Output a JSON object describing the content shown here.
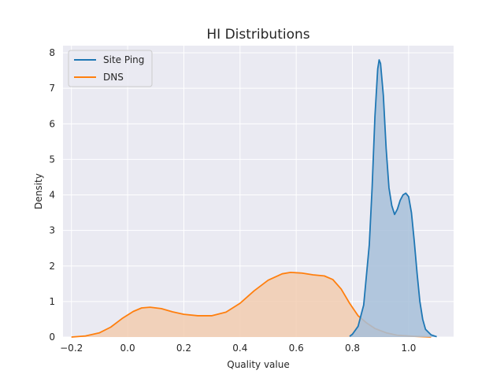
{
  "chart_data": {
    "type": "area",
    "title": "HI Distributions",
    "xlabel": "Quality value",
    "ylabel": "Density",
    "xlim": [
      -0.23,
      1.16
    ],
    "ylim": [
      0,
      8.2
    ],
    "xticks": [
      "−0.2",
      "0.0",
      "0.2",
      "0.4",
      "0.6",
      "0.8",
      "1.0"
    ],
    "xtick_values": [
      -0.2,
      0.0,
      0.2,
      0.4,
      0.6,
      0.8,
      1.0
    ],
    "yticks": [
      "0",
      "1",
      "2",
      "3",
      "4",
      "5",
      "6",
      "7",
      "8"
    ],
    "ytick_values": [
      0,
      1,
      2,
      3,
      4,
      5,
      6,
      7,
      8
    ],
    "grid": true,
    "legend_position": "top-left",
    "series": [
      {
        "name": "Site Ping",
        "color": "#1f77b4",
        "fill": "#a7bfd9",
        "points": [
          [
            0.79,
            0.02
          ],
          [
            0.8,
            0.08
          ],
          [
            0.82,
            0.3
          ],
          [
            0.84,
            0.9
          ],
          [
            0.86,
            2.6
          ],
          [
            0.87,
            4.2
          ],
          [
            0.88,
            6.2
          ],
          [
            0.89,
            7.55
          ],
          [
            0.895,
            7.8
          ],
          [
            0.9,
            7.7
          ],
          [
            0.91,
            6.8
          ],
          [
            0.92,
            5.3
          ],
          [
            0.93,
            4.2
          ],
          [
            0.94,
            3.7
          ],
          [
            0.95,
            3.45
          ],
          [
            0.96,
            3.6
          ],
          [
            0.97,
            3.85
          ],
          [
            0.98,
            4.0
          ],
          [
            0.99,
            4.05
          ],
          [
            1.0,
            3.95
          ],
          [
            1.01,
            3.5
          ],
          [
            1.02,
            2.7
          ],
          [
            1.03,
            1.8
          ],
          [
            1.04,
            1.0
          ],
          [
            1.05,
            0.5
          ],
          [
            1.06,
            0.22
          ],
          [
            1.08,
            0.06
          ],
          [
            1.1,
            0.01
          ]
        ]
      },
      {
        "name": "DNS",
        "color": "#ff7f0e",
        "fill": "#f2ccb0",
        "points": [
          [
            -0.2,
            0.0
          ],
          [
            -0.15,
            0.03
          ],
          [
            -0.1,
            0.12
          ],
          [
            -0.06,
            0.28
          ],
          [
            -0.02,
            0.52
          ],
          [
            0.02,
            0.72
          ],
          [
            0.05,
            0.82
          ],
          [
            0.08,
            0.84
          ],
          [
            0.12,
            0.8
          ],
          [
            0.16,
            0.71
          ],
          [
            0.2,
            0.64
          ],
          [
            0.25,
            0.6
          ],
          [
            0.3,
            0.6
          ],
          [
            0.35,
            0.7
          ],
          [
            0.4,
            0.95
          ],
          [
            0.45,
            1.3
          ],
          [
            0.5,
            1.6
          ],
          [
            0.55,
            1.78
          ],
          [
            0.58,
            1.82
          ],
          [
            0.62,
            1.8
          ],
          [
            0.66,
            1.75
          ],
          [
            0.7,
            1.72
          ],
          [
            0.73,
            1.62
          ],
          [
            0.76,
            1.35
          ],
          [
            0.79,
            0.95
          ],
          [
            0.82,
            0.6
          ],
          [
            0.85,
            0.4
          ],
          [
            0.88,
            0.24
          ],
          [
            0.92,
            0.12
          ],
          [
            0.96,
            0.05
          ],
          [
            1.02,
            0.02
          ],
          [
            1.08,
            0.0
          ]
        ]
      }
    ]
  }
}
